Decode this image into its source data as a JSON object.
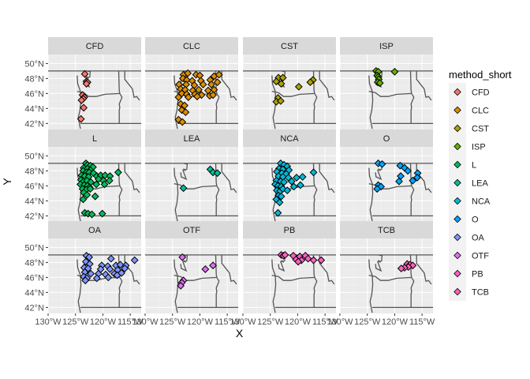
{
  "chart_data": {
    "type": "scatter",
    "facet_by": "method_short",
    "xlabel": "X",
    "ylabel": "Y",
    "xlim": [
      -130,
      -113
    ],
    "ylim": [
      41.2,
      51.2
    ],
    "x_ticks": [
      -130,
      -125,
      -120,
      -115
    ],
    "x_tick_labels": [
      "130°W",
      "125°W",
      "120°W",
      "115°W"
    ],
    "y_ticks": [
      42,
      44,
      46,
      48,
      50
    ],
    "y_tick_labels": [
      "42°N",
      "44°N",
      "46°N",
      "48°N",
      "50°N"
    ],
    "grid": true,
    "legend_title": "method_short",
    "legend_position": "right",
    "marker": "diamond",
    "panels": [
      {
        "name": "CFD",
        "color": "#F8766D",
        "points": [
          [
            -123.3,
            48.6
          ],
          [
            -123.0,
            47.6
          ],
          [
            -122.8,
            47.5
          ],
          [
            -123.0,
            47.3
          ],
          [
            -123.7,
            45.8
          ],
          [
            -123.4,
            45.5
          ],
          [
            -123.6,
            45.3
          ],
          [
            -123.9,
            45.1
          ],
          [
            -123.5,
            44.1
          ],
          [
            -124.0,
            42.6
          ]
        ]
      },
      {
        "name": "CLC",
        "color": "#DB8E00",
        "points": [
          [
            -123.0,
            48.5
          ],
          [
            -122.2,
            48.7
          ],
          [
            -120.7,
            48.5
          ],
          [
            -120.0,
            48.4
          ],
          [
            -117.4,
            48.3
          ],
          [
            -116.5,
            48.5
          ],
          [
            -123.1,
            48.0
          ],
          [
            -122.4,
            47.8
          ],
          [
            -121.4,
            47.7
          ],
          [
            -119.8,
            47.7
          ],
          [
            -118.1,
            47.8
          ],
          [
            -123.8,
            47.2
          ],
          [
            -122.5,
            47.2
          ],
          [
            -121.0,
            47.1
          ],
          [
            -119.4,
            47.2
          ],
          [
            -117.9,
            47.2
          ],
          [
            -116.8,
            47.5
          ],
          [
            -123.5,
            46.6
          ],
          [
            -122.7,
            46.5
          ],
          [
            -121.3,
            46.4
          ],
          [
            -120.2,
            46.5
          ],
          [
            -118.5,
            46.4
          ],
          [
            -117.4,
            46.5
          ],
          [
            -123.3,
            46.0
          ],
          [
            -122.4,
            45.9
          ],
          [
            -120.9,
            45.9
          ],
          [
            -119.7,
            45.8
          ],
          [
            -118.2,
            45.7
          ],
          [
            -117.6,
            45.8
          ],
          [
            -123.9,
            45.5
          ],
          [
            -122.1,
            45.5
          ],
          [
            -120.5,
            45.6
          ],
          [
            -123.5,
            44.6
          ],
          [
            -122.8,
            44.4
          ],
          [
            -123.3,
            43.8
          ],
          [
            -122.6,
            43.5
          ],
          [
            -123.9,
            42.5
          ],
          [
            -123.2,
            42.2
          ]
        ]
      },
      {
        "name": "CST",
        "color": "#AEA200",
        "points": [
          [
            -123.5,
            48.1
          ],
          [
            -122.7,
            48.1
          ],
          [
            -117.2,
            47.8
          ],
          [
            -117.7,
            47.5
          ],
          [
            -123.9,
            47.6
          ],
          [
            -123.0,
            47.3
          ],
          [
            -119.8,
            46.9
          ],
          [
            -123.6,
            45.4
          ],
          [
            -123.9,
            44.9
          ],
          [
            -123.1,
            45.0
          ]
        ]
      },
      {
        "name": "ISP",
        "color": "#64B200",
        "points": [
          [
            -123.4,
            49.0
          ],
          [
            -123.0,
            48.9
          ],
          [
            -120.0,
            48.9
          ],
          [
            -123.2,
            48.4
          ],
          [
            -123.0,
            48.2
          ],
          [
            -122.9,
            47.9
          ],
          [
            -123.1,
            47.5
          ],
          [
            -122.7,
            47.4
          ]
        ]
      },
      {
        "name": "L",
        "color": "#00BD5C",
        "points": [
          [
            -123.1,
            49.0
          ],
          [
            -122.8,
            48.8
          ],
          [
            -122.3,
            48.7
          ],
          [
            -121.8,
            48.5
          ],
          [
            -123.5,
            48.4
          ],
          [
            -122.8,
            48.3
          ],
          [
            -122.3,
            48.1
          ],
          [
            -123.6,
            48.0
          ],
          [
            -123.0,
            47.8
          ],
          [
            -122.5,
            47.8
          ],
          [
            -121.7,
            47.7
          ],
          [
            -123.9,
            47.4
          ],
          [
            -123.3,
            47.3
          ],
          [
            -122.6,
            47.2
          ],
          [
            -121.1,
            47.3
          ],
          [
            -120.4,
            47.4
          ],
          [
            -119.6,
            47.4
          ],
          [
            -118.7,
            47.3
          ],
          [
            -117.2,
            47.8
          ],
          [
            -124.0,
            46.8
          ],
          [
            -123.5,
            46.6
          ],
          [
            -122.9,
            46.7
          ],
          [
            -122.2,
            46.5
          ],
          [
            -120.8,
            46.9
          ],
          [
            -119.9,
            46.7
          ],
          [
            -118.8,
            46.7
          ],
          [
            -124.1,
            46.2
          ],
          [
            -123.4,
            46.1
          ],
          [
            -122.8,
            46.0
          ],
          [
            -122.4,
            45.8
          ],
          [
            -121.2,
            46.2
          ],
          [
            -119.7,
            46.2
          ],
          [
            -123.7,
            45.6
          ],
          [
            -123.0,
            45.5
          ],
          [
            -122.3,
            45.6
          ],
          [
            -123.5,
            45.1
          ],
          [
            -122.9,
            44.8
          ],
          [
            -121.4,
            44.6
          ],
          [
            -123.6,
            44.2
          ],
          [
            -123.3,
            42.4
          ],
          [
            -122.7,
            42.3
          ],
          [
            -122.0,
            42.2
          ],
          [
            -120.1,
            42.3
          ]
        ]
      },
      {
        "name": "LEA",
        "color": "#00C097",
        "points": [
          [
            -118.1,
            48.2
          ],
          [
            -117.6,
            47.8
          ],
          [
            -116.8,
            47.7
          ],
          [
            -123.0,
            45.7
          ]
        ]
      },
      {
        "name": "NCA",
        "color": "#00BBDB",
        "points": [
          [
            -123.1,
            49.0
          ],
          [
            -122.5,
            48.8
          ],
          [
            -121.9,
            48.6
          ],
          [
            -123.4,
            48.3
          ],
          [
            -122.7,
            48.2
          ],
          [
            -121.6,
            48.1
          ],
          [
            -123.8,
            47.9
          ],
          [
            -122.9,
            47.7
          ],
          [
            -122.1,
            47.6
          ],
          [
            -117.1,
            47.8
          ],
          [
            -123.5,
            47.3
          ],
          [
            -122.7,
            47.2
          ],
          [
            -121.7,
            47.1
          ],
          [
            -120.2,
            47.1
          ],
          [
            -119.1,
            47.2
          ],
          [
            -123.9,
            46.7
          ],
          [
            -123.1,
            46.6
          ],
          [
            -122.5,
            46.5
          ],
          [
            -121.1,
            46.6
          ],
          [
            -124.1,
            46.2
          ],
          [
            -123.6,
            46.0
          ],
          [
            -123.0,
            45.9
          ],
          [
            -120.7,
            45.9
          ],
          [
            -119.5,
            46.1
          ],
          [
            -123.8,
            45.4
          ],
          [
            -123.2,
            45.3
          ],
          [
            -122.7,
            45.6
          ],
          [
            -121.9,
            45.4
          ],
          [
            -123.5,
            44.7
          ],
          [
            -123.0,
            44.6
          ],
          [
            -123.9,
            44.2
          ],
          [
            -123.3,
            43.8
          ],
          [
            -123.6,
            42.4
          ]
        ]
      },
      {
        "name": "O",
        "color": "#00A6FF",
        "points": [
          [
            -123.0,
            49.0
          ],
          [
            -122.3,
            48.9
          ],
          [
            -119.0,
            48.7
          ],
          [
            -118.2,
            48.4
          ],
          [
            -117.6,
            48.0
          ],
          [
            -115.8,
            47.7
          ],
          [
            -118.9,
            47.3
          ],
          [
            -115.9,
            47.1
          ],
          [
            -116.7,
            46.7
          ],
          [
            -119.2,
            46.6
          ],
          [
            -123.0,
            46.1
          ],
          [
            -122.5,
            45.9
          ],
          [
            -123.2,
            45.6
          ]
        ]
      },
      {
        "name": "OA",
        "color": "#7F96FF",
        "points": [
          [
            -123.0,
            48.9
          ],
          [
            -122.5,
            48.7
          ],
          [
            -118.5,
            48.5
          ],
          [
            -123.1,
            48.1
          ],
          [
            -122.4,
            47.8
          ],
          [
            -120.2,
            47.6
          ],
          [
            -119.1,
            47.5
          ],
          [
            -117.6,
            47.6
          ],
          [
            -116.8,
            47.7
          ],
          [
            -115.8,
            47.6
          ],
          [
            -114.2,
            48.3
          ],
          [
            -123.4,
            47.3
          ],
          [
            -122.7,
            47.2
          ],
          [
            -120.4,
            47.1
          ],
          [
            -118.7,
            47.1
          ],
          [
            -117.3,
            47.0
          ],
          [
            -116.0,
            47.2
          ],
          [
            -123.3,
            46.7
          ],
          [
            -122.2,
            46.5
          ],
          [
            -120.8,
            46.5
          ],
          [
            -119.5,
            46.4
          ],
          [
            -117.9,
            46.5
          ],
          [
            -116.6,
            46.6
          ],
          [
            -123.5,
            46.1
          ],
          [
            -122.9,
            45.9
          ],
          [
            -121.1,
            45.9
          ],
          [
            -119.0,
            46.0
          ],
          [
            -117.4,
            46.3
          ],
          [
            -123.2,
            45.6
          ]
        ]
      },
      {
        "name": "OTF",
        "color": "#E36EF6",
        "points": [
          [
            -123.2,
            48.7
          ],
          [
            -117.6,
            47.6
          ],
          [
            -119.0,
            47.1
          ],
          [
            -123.0,
            45.6
          ],
          [
            -123.3,
            45.3
          ],
          [
            -123.5,
            44.9
          ]
        ]
      },
      {
        "name": "PB",
        "color": "#FF61C3",
        "points": [
          [
            -123.0,
            49.0
          ],
          [
            -122.6,
            48.9
          ],
          [
            -122.3,
            49.0
          ],
          [
            -120.8,
            48.9
          ],
          [
            -119.6,
            48.8
          ],
          [
            -118.6,
            48.9
          ],
          [
            -120.3,
            48.4
          ],
          [
            -119.3,
            48.3
          ],
          [
            -118.1,
            48.5
          ],
          [
            -117.1,
            48.3
          ],
          [
            -115.7,
            48.3
          ],
          [
            -119.9,
            48.1
          ]
        ]
      },
      {
        "name": "TCB",
        "color": "#FF62BC",
        "points": [
          [
            -117.7,
            47.8
          ],
          [
            -117.2,
            47.7
          ],
          [
            -116.7,
            47.6
          ],
          [
            -117.5,
            47.4
          ],
          [
            -118.2,
            47.3
          ],
          [
            -118.8,
            47.2
          ]
        ]
      }
    ]
  }
}
